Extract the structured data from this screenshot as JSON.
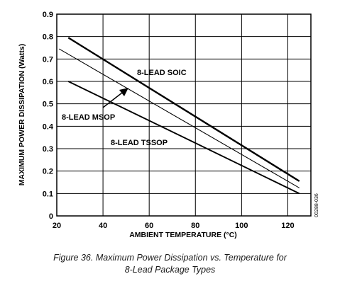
{
  "chart_data": {
    "type": "line",
    "title": "",
    "xlabel": "AMBIENT TEMPERATURE (°C)",
    "ylabel": "MAXIMUM POWER DISSIPATION (Watts)",
    "xlim": [
      20,
      130
    ],
    "ylim": [
      0,
      0.9
    ],
    "x_ticks": [
      "20",
      "40",
      "60",
      "80",
      "100",
      "120"
    ],
    "x_tick_values": [
      20,
      40,
      60,
      80,
      100,
      120
    ],
    "y_ticks": [
      "0",
      "0.1",
      "0.2",
      "0.3",
      "0.4",
      "0.5",
      "0.6",
      "0.7",
      "0.8",
      "0.9"
    ],
    "y_tick_values": [
      0,
      0.1,
      0.2,
      0.3,
      0.4,
      0.5,
      0.6,
      0.7,
      0.8,
      0.9
    ],
    "grid": true,
    "series": [
      {
        "name": "8-LEAD SOIC",
        "x": [
          25,
          125
        ],
        "y": [
          0.795,
          0.155
        ],
        "stroke_width": 2.4
      },
      {
        "name": "8-LEAD MSOP",
        "x": [
          21,
          125
        ],
        "y": [
          0.745,
          0.125
        ],
        "stroke_width": 1.1
      },
      {
        "name": "8-LEAD TSSOP",
        "x": [
          25,
          125
        ],
        "y": [
          0.6,
          0.1
        ],
        "stroke_width": 1.9
      }
    ],
    "figure_id": "00288-036"
  },
  "caption": {
    "line1": "Figure 36. Maximum Power Dissipation vs. Temperature for",
    "line2": "8-Lead Package Types"
  }
}
